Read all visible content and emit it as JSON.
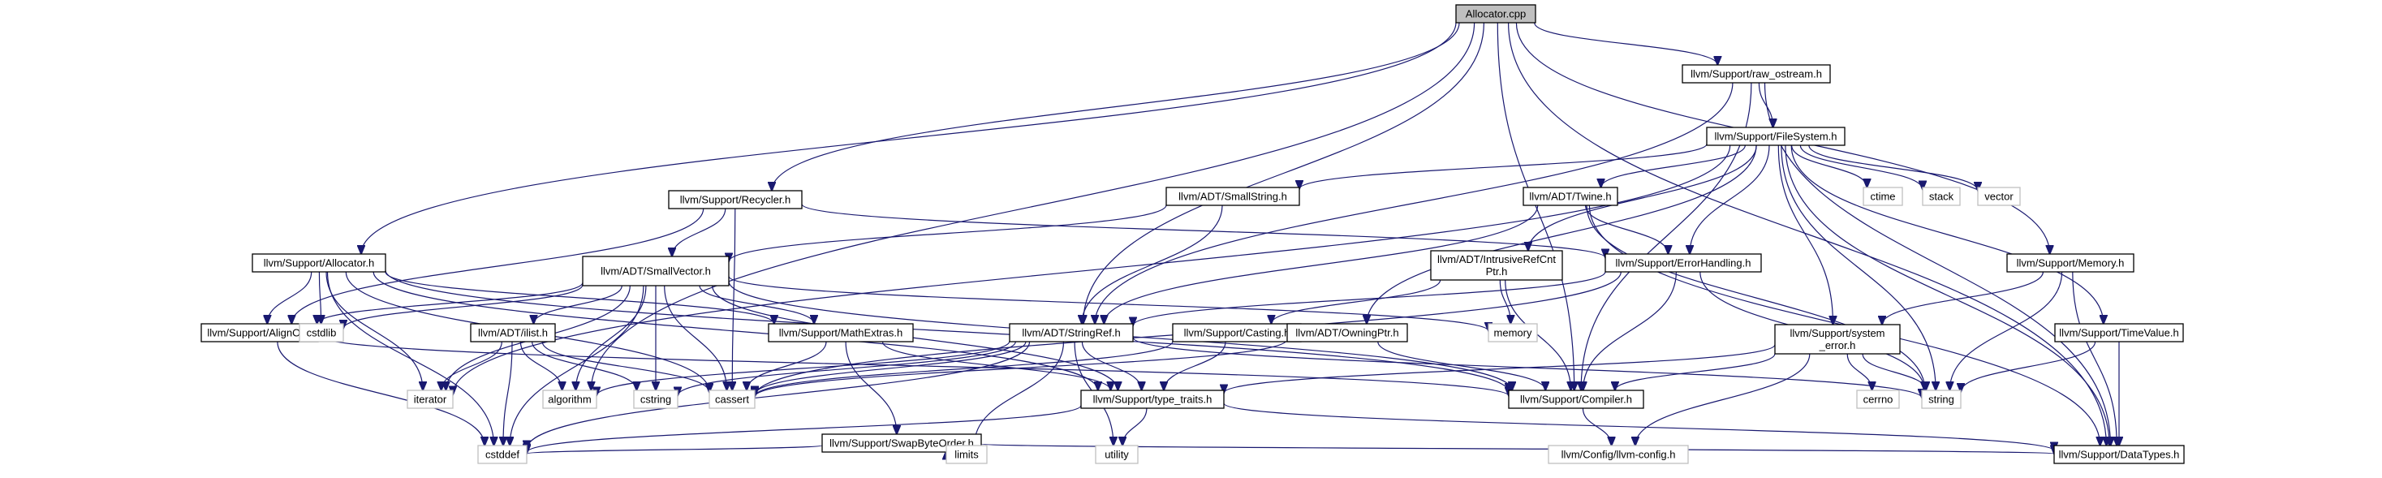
{
  "title": "Allocator.cpp",
  "colors": {
    "edge": "#191970",
    "root_fill": "#bfbfbf",
    "node_border": "#000000",
    "system_border": "#bfbfbf"
  },
  "nodes": {
    "n0": {
      "label": [
        "Allocator.cpp"
      ],
      "kind": "root"
    },
    "n1": {
      "label": [
        "llvm/Support/raw_ostream.h"
      ],
      "kind": "file"
    },
    "n2": {
      "label": [
        "llvm/Support/FileSystem.h"
      ],
      "kind": "file"
    },
    "n3": {
      "label": [
        "llvm/Support/Recycler.h"
      ],
      "kind": "file"
    },
    "n4": {
      "label": [
        "llvm/ADT/SmallString.h"
      ],
      "kind": "file"
    },
    "n5": {
      "label": [
        "llvm/ADT/Twine.h"
      ],
      "kind": "file"
    },
    "n6": {
      "label": [
        "ctime"
      ],
      "kind": "system"
    },
    "n7": {
      "label": [
        "stack"
      ],
      "kind": "system"
    },
    "n8": {
      "label": [
        "vector"
      ],
      "kind": "system"
    },
    "n9": {
      "label": [
        "llvm/Support/Memory.h"
      ],
      "kind": "file"
    },
    "n10": {
      "label": [
        "llvm/Support/Allocator.h"
      ],
      "kind": "file"
    },
    "n11": {
      "label": [
        "llvm/ADT/SmallVector.h"
      ],
      "kind": "file"
    },
    "n12": {
      "label": [
        "llvm/ADT/IntrusiveRefCnt",
        "Ptr.h"
      ],
      "kind": "file"
    },
    "n13": {
      "label": [
        "llvm/Support/ErrorHandling.h"
      ],
      "kind": "file"
    },
    "n14": {
      "label": [
        "llvm/Support/AlignOf.h"
      ],
      "kind": "file"
    },
    "n15": {
      "label": [
        "cstdlib"
      ],
      "kind": "system"
    },
    "n16": {
      "label": [
        "llvm/Support/MathExtras.h"
      ],
      "kind": "file"
    },
    "n17": {
      "label": [
        "llvm/ADT/ilist.h"
      ],
      "kind": "file"
    },
    "n18": {
      "label": [
        "llvm/ADT/StringRef.h"
      ],
      "kind": "file"
    },
    "n19": {
      "label": [
        "llvm/Support/Casting.h"
      ],
      "kind": "file"
    },
    "n20": {
      "label": [
        "llvm/ADT/OwningPtr.h"
      ],
      "kind": "file"
    },
    "n21": {
      "label": [
        "memory"
      ],
      "kind": "system"
    },
    "n22": {
      "label": [
        "llvm/Support/system",
        "_error.h"
      ],
      "kind": "file"
    },
    "n23": {
      "label": [
        "llvm/Support/TimeValue.h"
      ],
      "kind": "file"
    },
    "n24": {
      "label": [
        "iterator"
      ],
      "kind": "system"
    },
    "n25": {
      "label": [
        "algorithm"
      ],
      "kind": "system"
    },
    "n26": {
      "label": [
        "cstring"
      ],
      "kind": "system"
    },
    "n27": {
      "label": [
        "cassert"
      ],
      "kind": "system"
    },
    "n28": {
      "label": [
        "llvm/Support/type_traits.h"
      ],
      "kind": "file"
    },
    "n29": {
      "label": [
        "llvm/Support/Compiler.h"
      ],
      "kind": "file"
    },
    "n30": {
      "label": [
        "string"
      ],
      "kind": "system"
    },
    "n31": {
      "label": [
        "cerrno"
      ],
      "kind": "system"
    },
    "n32": {
      "label": [
        "llvm/Support/SwapByteOrder.h"
      ],
      "kind": "file"
    },
    "n33": {
      "label": [
        "cstddef"
      ],
      "kind": "system"
    },
    "n34": {
      "label": [
        "limits"
      ],
      "kind": "system"
    },
    "n35": {
      "label": [
        "utility"
      ],
      "kind": "system"
    },
    "n36": {
      "label": [
        "llvm/Config/llvm-config.h"
      ],
      "kind": "system"
    },
    "n37": {
      "label": [
        "llvm/Support/DataTypes.h"
      ],
      "kind": "file"
    }
  },
  "edges": [
    [
      "n0",
      "n1"
    ],
    [
      "n0",
      "n9"
    ],
    [
      "n0",
      "n10"
    ],
    [
      "n0",
      "n3"
    ],
    [
      "n0",
      "n18"
    ],
    [
      "n0",
      "n29"
    ],
    [
      "n0",
      "n37"
    ],
    [
      "n0",
      "n25"
    ],
    [
      "n1",
      "n2"
    ],
    [
      "n1",
      "n18"
    ],
    [
      "n1",
      "n29"
    ],
    [
      "n1",
      "n37"
    ],
    [
      "n2",
      "n4"
    ],
    [
      "n2",
      "n5"
    ],
    [
      "n2",
      "n12"
    ],
    [
      "n2",
      "n20"
    ],
    [
      "n2",
      "n13"
    ],
    [
      "n2",
      "n22"
    ],
    [
      "n2",
      "n23"
    ],
    [
      "n2",
      "n6"
    ],
    [
      "n2",
      "n7"
    ],
    [
      "n2",
      "n8"
    ],
    [
      "n2",
      "n30"
    ],
    [
      "n2",
      "n37"
    ],
    [
      "n2",
      "n24"
    ],
    [
      "n3",
      "n11"
    ],
    [
      "n3",
      "n14"
    ],
    [
      "n3",
      "n13"
    ],
    [
      "n3",
      "n27"
    ],
    [
      "n4",
      "n11"
    ],
    [
      "n4",
      "n18"
    ],
    [
      "n5",
      "n18"
    ],
    [
      "n5",
      "n13"
    ],
    [
      "n5",
      "n37"
    ],
    [
      "n5",
      "n30"
    ],
    [
      "n9",
      "n22"
    ],
    [
      "n9",
      "n30"
    ],
    [
      "n9",
      "n37"
    ],
    [
      "n10",
      "n14"
    ],
    [
      "n10",
      "n15"
    ],
    [
      "n10",
      "n16"
    ],
    [
      "n10",
      "n33"
    ],
    [
      "n10",
      "n27"
    ],
    [
      "n10",
      "n24"
    ],
    [
      "n10",
      "n29"
    ],
    [
      "n10",
      "n28"
    ],
    [
      "n11",
      "n14"
    ],
    [
      "n11",
      "n16"
    ],
    [
      "n11",
      "n17"
    ],
    [
      "n11",
      "n25"
    ],
    [
      "n11",
      "n26"
    ],
    [
      "n11",
      "n27"
    ],
    [
      "n11",
      "n24"
    ],
    [
      "n11",
      "n33"
    ],
    [
      "n11",
      "n21"
    ],
    [
      "n11",
      "n29"
    ],
    [
      "n11",
      "n28"
    ],
    [
      "n11",
      "n15"
    ],
    [
      "n12",
      "n21"
    ],
    [
      "n12",
      "n29"
    ],
    [
      "n12",
      "n19"
    ],
    [
      "n13",
      "n18"
    ],
    [
      "n13",
      "n29"
    ],
    [
      "n13",
      "n30"
    ],
    [
      "n13",
      "n27"
    ],
    [
      "n14",
      "n33"
    ],
    [
      "n14",
      "n29"
    ],
    [
      "n16",
      "n32"
    ],
    [
      "n16",
      "n28"
    ],
    [
      "n16",
      "n27"
    ],
    [
      "n17",
      "n25"
    ],
    [
      "n17",
      "n27"
    ],
    [
      "n17",
      "n26"
    ],
    [
      "n17",
      "n33"
    ],
    [
      "n17",
      "n24"
    ],
    [
      "n18",
      "n28"
    ],
    [
      "n18",
      "n25"
    ],
    [
      "n18",
      "n27"
    ],
    [
      "n18",
      "n26"
    ],
    [
      "n18",
      "n35"
    ],
    [
      "n18",
      "n34"
    ],
    [
      "n18",
      "n30"
    ],
    [
      "n18",
      "n33"
    ],
    [
      "n19",
      "n28"
    ],
    [
      "n19",
      "n27"
    ],
    [
      "n20",
      "n29"
    ],
    [
      "n20",
      "n27"
    ],
    [
      "n22",
      "n29"
    ],
    [
      "n22",
      "n31"
    ],
    [
      "n22",
      "n30"
    ],
    [
      "n22",
      "n36"
    ],
    [
      "n22",
      "n28"
    ],
    [
      "n23",
      "n37"
    ],
    [
      "n23",
      "n30"
    ],
    [
      "n28",
      "n33"
    ],
    [
      "n28",
      "n35"
    ],
    [
      "n28",
      "n37"
    ],
    [
      "n29",
      "n36"
    ],
    [
      "n32",
      "n33"
    ],
    [
      "n32",
      "n34"
    ],
    [
      "n32",
      "n37"
    ]
  ]
}
